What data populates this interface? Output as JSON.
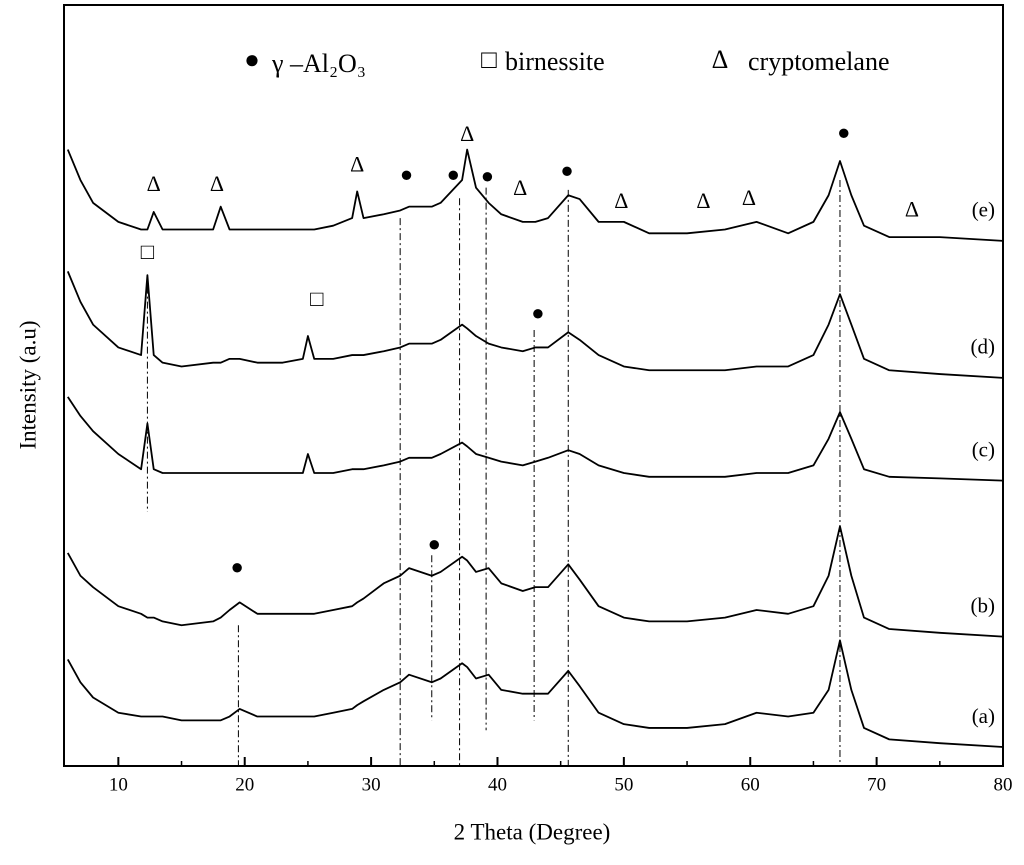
{
  "chart_data": {
    "type": "line",
    "xlabel": "2 Theta (Degree)",
    "ylabel": "Intensity (a.u)",
    "xlim": [
      5.7,
      80
    ],
    "xticks": [
      10,
      20,
      30,
      40,
      50,
      60,
      70,
      80
    ],
    "xminor_ticks": [
      15,
      25,
      35,
      45,
      55,
      65,
      75
    ],
    "ylim": [
      0,
      100
    ],
    "legend": [
      {
        "symbol": "●",
        "label": "γ –Al₂O₃"
      },
      {
        "symbol": "□",
        "label": "birnessite"
      },
      {
        "symbol": "Δ",
        "label": "cryptomelane"
      }
    ],
    "x": [
      6,
      7,
      8,
      10,
      11.8,
      12.3,
      12.8,
      13.5,
      15,
      17.5,
      18.1,
      18.8,
      19.6,
      21,
      23,
      24.6,
      25,
      25.5,
      27,
      28.5,
      28.9,
      29.4,
      31,
      32.3,
      33,
      34.8,
      35.5,
      37.2,
      37.6,
      38.3,
      39.3,
      40.3,
      42,
      43,
      44,
      45.6,
      46.5,
      48,
      50,
      52,
      55,
      58,
      60.5,
      63,
      65,
      66.2,
      67.1,
      68,
      69,
      71,
      75,
      80
    ],
    "series": [
      {
        "name": "(a)",
        "color": "#000000",
        "values": [
          14,
          11,
          9,
          7,
          6.5,
          6.5,
          6.5,
          6.5,
          6,
          6,
          6,
          6.5,
          7.5,
          6.5,
          6.5,
          6.5,
          6.5,
          6.5,
          7,
          7.5,
          8,
          8.5,
          10,
          11,
          12,
          11,
          11.5,
          13.5,
          13,
          11.5,
          12,
          10,
          9.5,
          9.5,
          9.5,
          12.5,
          10.5,
          7,
          5.5,
          5,
          5,
          5.5,
          7,
          6.5,
          7,
          10,
          16.5,
          10,
          5,
          3.5,
          3,
          2.5
        ]
      },
      {
        "name": "(b)",
        "color": "#000000",
        "values": [
          28,
          25,
          23.5,
          21,
          20,
          19.5,
          19.5,
          19,
          18.5,
          19,
          19.5,
          20.5,
          21.5,
          20,
          20,
          20,
          20,
          20,
          20.5,
          21,
          21.5,
          22,
          24,
          25,
          26,
          25,
          25.5,
          27.5,
          27,
          25.5,
          26,
          24,
          23,
          23.5,
          23.5,
          26.5,
          24.5,
          21,
          19.5,
          19,
          19,
          19.5,
          20.5,
          20,
          21,
          25,
          31.5,
          25,
          19.5,
          18,
          17.5,
          17
        ]
      },
      {
        "name": "(c)",
        "color": "#000000",
        "values": [
          48.5,
          46,
          44,
          41,
          39,
          45,
          39,
          38.5,
          38.5,
          38.5,
          38.5,
          38.5,
          38.5,
          38.5,
          38.5,
          38.5,
          41,
          38.5,
          38.5,
          39,
          39,
          39,
          39.5,
          40,
          40.5,
          40.5,
          41,
          42.5,
          42,
          41,
          40.5,
          40,
          39.5,
          40,
          40.5,
          41.5,
          41,
          39.5,
          38.5,
          38,
          38,
          38,
          38.5,
          38.5,
          39.5,
          43,
          46.5,
          43,
          39,
          38,
          37.8,
          37.5
        ]
      },
      {
        "name": "(d)",
        "color": "#000000",
        "values": [
          65,
          61,
          58,
          55,
          54,
          64.5,
          54,
          53,
          52.5,
          53,
          53,
          53.5,
          53.5,
          53,
          53,
          53.5,
          56.5,
          53.5,
          53.5,
          54,
          54,
          54,
          54.5,
          55,
          55.5,
          55.5,
          56,
          58,
          57.5,
          56.5,
          55.5,
          55,
          54.5,
          55,
          55,
          57,
          56,
          54,
          52.5,
          52,
          52,
          52,
          52.5,
          52.5,
          54,
          58,
          62,
          58,
          53.5,
          52,
          51.5,
          51
        ]
      },
      {
        "name": "(e)",
        "color": "#000000",
        "values": [
          81,
          77,
          74,
          71.5,
          70.5,
          70.5,
          72.8,
          70.5,
          70.5,
          70.5,
          73.5,
          70.5,
          70.5,
          70.5,
          70.5,
          70.5,
          70.5,
          70.5,
          71,
          72,
          75.5,
          72,
          72.5,
          73,
          73.5,
          73.5,
          74,
          77,
          81,
          76,
          74,
          72.5,
          71.5,
          71.5,
          72,
          75,
          74.5,
          71.5,
          71.5,
          70,
          70,
          70.5,
          71.5,
          70,
          71.5,
          75,
          79.5,
          75,
          71,
          69.5,
          69.5,
          69
        ]
      }
    ],
    "annotations": [
      {
        "text": "Δ",
        "x": 12.8,
        "y": 76.2
      },
      {
        "text": "Δ",
        "x": 17.8,
        "y": 76.2
      },
      {
        "text": "Δ",
        "x": 28.9,
        "y": 78.8
      },
      {
        "text": "●",
        "x": 32.8,
        "y": 77.5
      },
      {
        "text": "●",
        "x": 36.5,
        "y": 77.5
      },
      {
        "text": "Δ",
        "x": 37.6,
        "y": 82.8
      },
      {
        "text": "●",
        "x": 39.2,
        "y": 77.3
      },
      {
        "text": "Δ",
        "x": 41.8,
        "y": 75.7
      },
      {
        "text": "●",
        "x": 45.5,
        "y": 78
      },
      {
        "text": "Δ",
        "x": 49.8,
        "y": 74
      },
      {
        "text": "Δ",
        "x": 56.3,
        "y": 74
      },
      {
        "text": "Δ",
        "x": 59.9,
        "y": 74.4
      },
      {
        "text": "●",
        "x": 67.4,
        "y": 83
      },
      {
        "text": "Δ",
        "x": 72.8,
        "y": 72.9
      },
      {
        "text": "□",
        "x": 12.3,
        "y": 67.3
      },
      {
        "text": "□",
        "x": 25.7,
        "y": 61.1
      },
      {
        "text": "●",
        "x": 43.2,
        "y": 59.3
      },
      {
        "text": "●",
        "x": 19.4,
        "y": 25.9
      },
      {
        "text": "●",
        "x": 35,
        "y": 28.9
      }
    ],
    "reference_lines": [
      {
        "x": 12.3,
        "y": [
          63,
          33.4
        ]
      },
      {
        "x": 19.5,
        "y": [
          18.5,
          0
        ]
      },
      {
        "x": 32.3,
        "y": [
          72,
          0
        ]
      },
      {
        "x": 34.8,
        "y": [
          27.7,
          6
        ]
      },
      {
        "x": 37,
        "y": [
          74.6,
          0
        ]
      },
      {
        "x": 39.1,
        "y": [
          76,
          4.7
        ]
      },
      {
        "x": 42.9,
        "y": [
          57.3,
          6
        ]
      },
      {
        "x": 45.6,
        "y": [
          75.7,
          0
        ]
      },
      {
        "x": 67.1,
        "y": [
          77,
          0
        ]
      }
    ]
  }
}
